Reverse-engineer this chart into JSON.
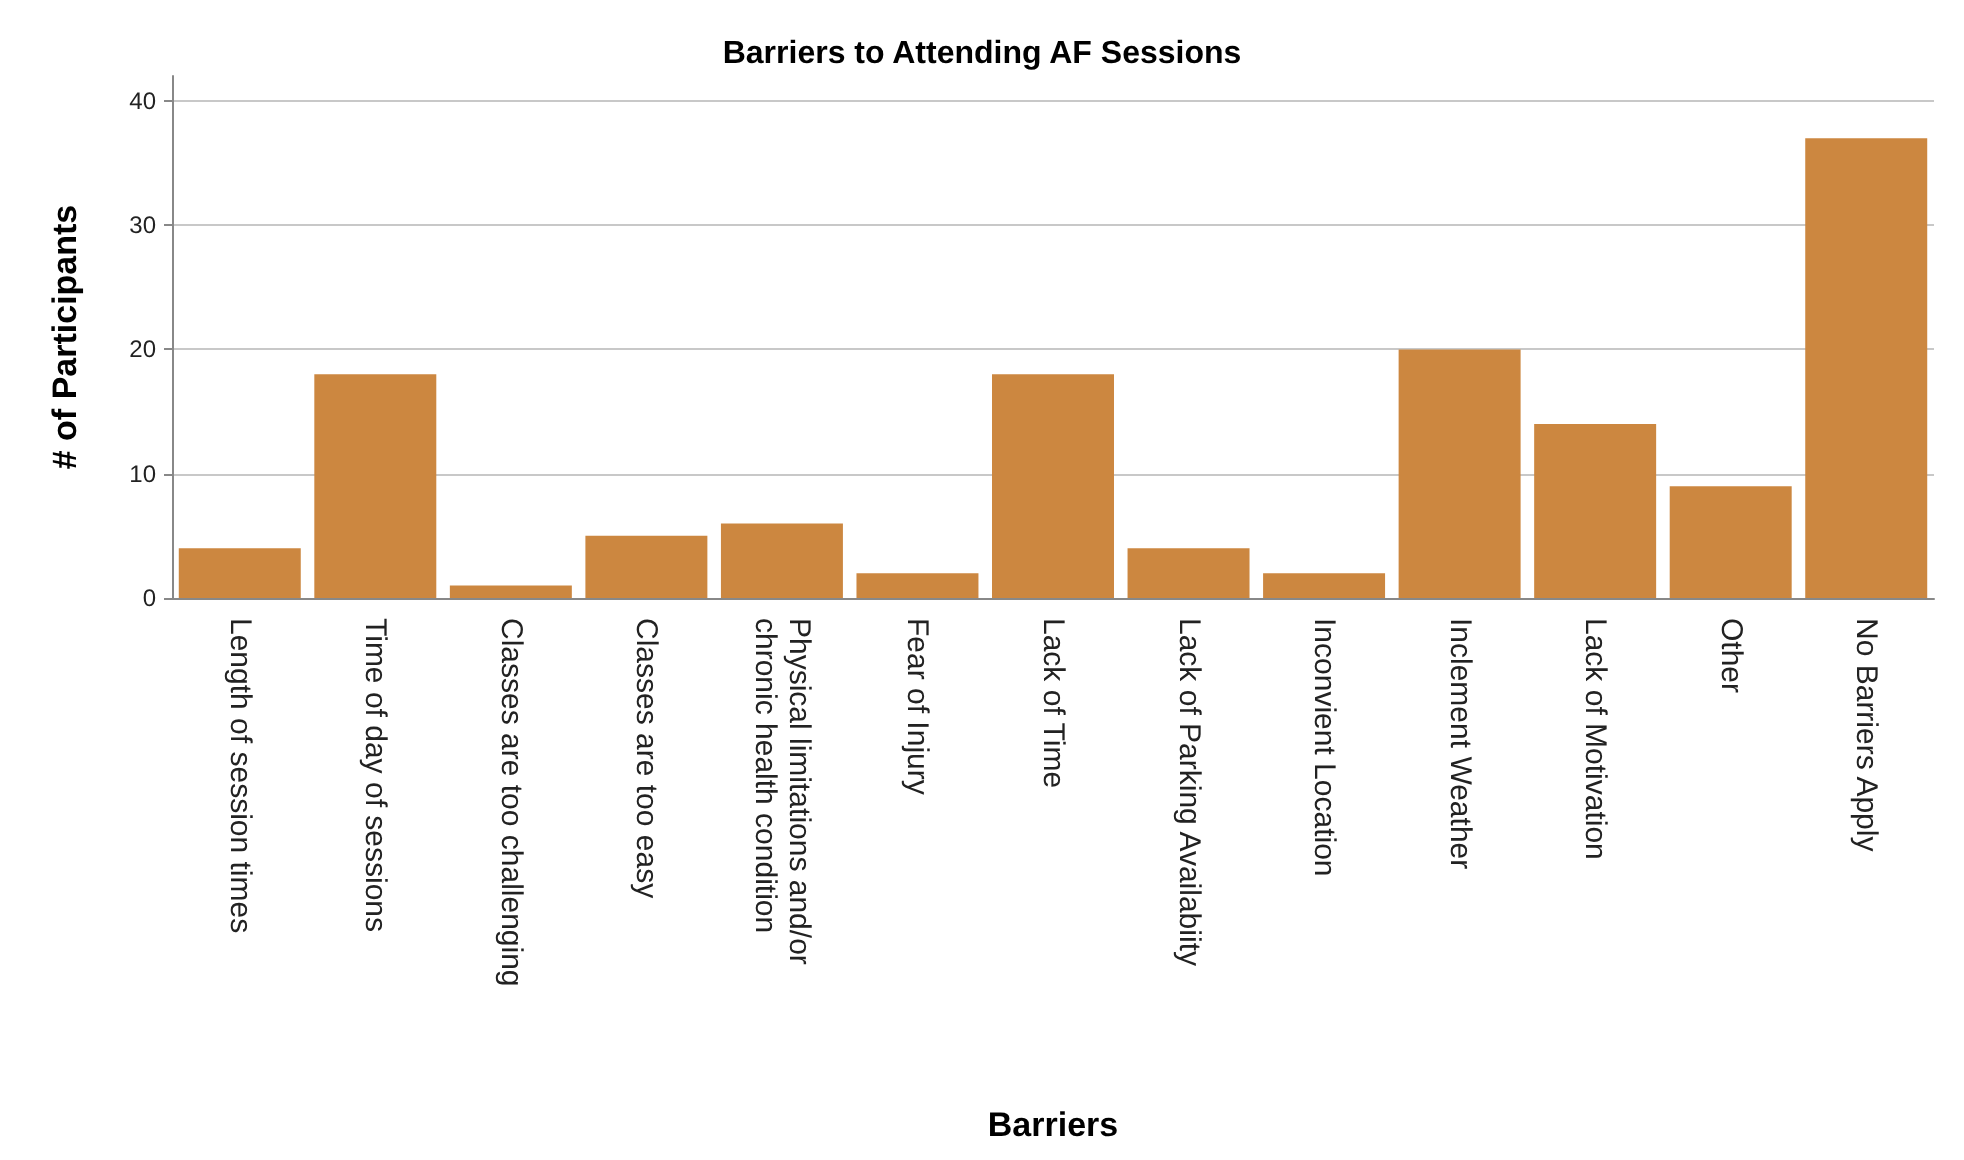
{
  "chart_data": {
    "type": "bar",
    "title": "Barriers to Attending AF Sessions",
    "xlabel": "Barriers",
    "ylabel": "# of Participants",
    "categories": [
      "Length of session times",
      "Time of day of sessions",
      "Classes are too challenging",
      "Classes are too easy",
      "Physical limitations and/or\nchronic health condition",
      "Fear of Injury",
      "Lack of Time",
      "Lack of Parking Availabiity",
      "Inconvient Location",
      "Inclement Weather",
      "Lack of Motivation",
      "Other",
      "No Barriers Apply"
    ],
    "values": [
      4,
      18,
      1,
      5,
      6,
      2,
      18,
      4,
      2,
      20,
      14,
      9,
      37
    ],
    "color": "#cc8740",
    "ylim": [
      0,
      42
    ],
    "yticks": [
      0,
      10,
      20,
      30,
      40
    ],
    "grid": "y"
  }
}
